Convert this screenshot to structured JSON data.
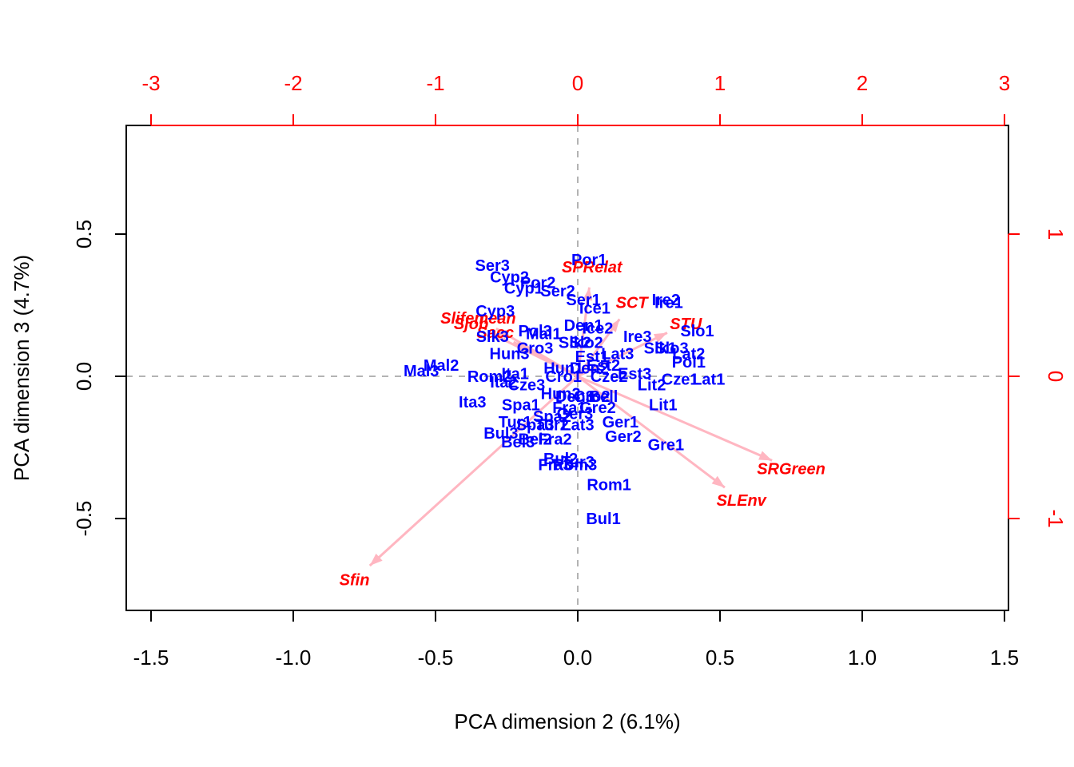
{
  "chart_data": {
    "type": "scatter",
    "subtype": "biplot",
    "title": "",
    "xlabel": "PCA dimension 2 (6.1%)",
    "ylabel": "PCA dimension 3 (4.7%)",
    "xlim": [
      -1.5,
      1.5
    ],
    "ylim": [
      -0.8,
      0.8
    ],
    "x_ticks": [
      -1.5,
      -1.0,
      -0.5,
      0.0,
      0.5,
      1.0,
      1.5
    ],
    "x_tick_labels": [
      "-1.5",
      "-1.0",
      "-0.5",
      "0.0",
      "0.5",
      "1.0",
      "1.5"
    ],
    "y_ticks": [
      -0.5,
      0.0,
      0.5
    ],
    "y_tick_labels": [
      "-0.5",
      "0.0",
      "0.5"
    ],
    "secondary_axis_color": "#ff0000",
    "x2_ticks": [
      -3,
      -2,
      -1,
      0,
      1,
      2,
      3
    ],
    "x2_tick_labels": [
      "-3",
      "-2",
      "-1",
      "0",
      "1",
      "2",
      "3"
    ],
    "y2_ticks": [
      -1,
      0,
      1
    ],
    "y2_tick_labels": [
      "-1",
      "0",
      "1"
    ],
    "zero_lines": true,
    "point_color": "#0000ff",
    "vector_label_color": "#ff0000",
    "arrow_color": "#ffb6c1",
    "observations": [
      {
        "label": "Por1",
        "x": 0.04,
        "y": 0.41
      },
      {
        "label": "Ser3",
        "x": -0.3,
        "y": 0.39
      },
      {
        "label": "Cyp2",
        "x": -0.24,
        "y": 0.35
      },
      {
        "label": "Por2",
        "x": -0.14,
        "y": 0.33
      },
      {
        "label": "Cyp1",
        "x": -0.19,
        "y": 0.31
      },
      {
        "label": "Ser2",
        "x": -0.07,
        "y": 0.3
      },
      {
        "label": "Ser1",
        "x": 0.02,
        "y": 0.27
      },
      {
        "label": "Ice1",
        "x": 0.06,
        "y": 0.24
      },
      {
        "label": "Cyp3",
        "x": -0.29,
        "y": 0.23
      },
      {
        "label": "Ire2",
        "x": 0.31,
        "y": 0.27
      },
      {
        "label": "Ire1",
        "x": 0.32,
        "y": 0.26
      },
      {
        "label": "Den1",
        "x": 0.02,
        "y": 0.18
      },
      {
        "label": "Ice2",
        "x": 0.07,
        "y": 0.17
      },
      {
        "label": "Slo1",
        "x": 0.42,
        "y": 0.16
      },
      {
        "label": "Slk3",
        "x": -0.3,
        "y": 0.14
      },
      {
        "label": "Pol3",
        "x": -0.15,
        "y": 0.16
      },
      {
        "label": "Mal1",
        "x": -0.12,
        "y": 0.15
      },
      {
        "label": "Ire3",
        "x": 0.21,
        "y": 0.14
      },
      {
        "label": "Slk2",
        "x": -0.01,
        "y": 0.12
      },
      {
        "label": "Slo2",
        "x": 0.03,
        "y": 0.12
      },
      {
        "label": "Slk1",
        "x": 0.29,
        "y": 0.1
      },
      {
        "label": "Slo3",
        "x": 0.33,
        "y": 0.1
      },
      {
        "label": "Lat2",
        "x": 0.39,
        "y": 0.08
      },
      {
        "label": "Cro3",
        "x": -0.15,
        "y": 0.1
      },
      {
        "label": "Hun3",
        "x": -0.24,
        "y": 0.08
      },
      {
        "label": "Lat3",
        "x": 0.14,
        "y": 0.08
      },
      {
        "label": "Est1",
        "x": 0.05,
        "y": 0.07
      },
      {
        "label": "Pol1",
        "x": 0.39,
        "y": 0.05
      },
      {
        "label": "Mal2",
        "x": -0.48,
        "y": 0.04
      },
      {
        "label": "Mal3",
        "x": -0.55,
        "y": 0.02
      },
      {
        "label": "Est2",
        "x": 0.09,
        "y": 0.04
      },
      {
        "label": "Den2",
        "x": 0.04,
        "y": 0.03
      },
      {
        "label": "Hun1",
        "x": -0.05,
        "y": 0.03
      },
      {
        "label": "Est3",
        "x": 0.2,
        "y": 0.01
      },
      {
        "label": "Rom2",
        "x": -0.31,
        "y": 0.0
      },
      {
        "label": "Ita1",
        "x": -0.22,
        "y": 0.01
      },
      {
        "label": "Cze1",
        "x": 0.36,
        "y": -0.01
      },
      {
        "label": "Lat1",
        "x": 0.46,
        "y": -0.01
      },
      {
        "label": "Cro1",
        "x": -0.05,
        "y": 0.0
      },
      {
        "label": "Cze2",
        "x": 0.11,
        "y": 0.0
      },
      {
        "label": "Lit2",
        "x": 0.26,
        "y": -0.03
      },
      {
        "label": "Ita2",
        "x": -0.26,
        "y": -0.02
      },
      {
        "label": "Cze3",
        "x": -0.18,
        "y": -0.03
      },
      {
        "label": "Hun2",
        "x": -0.06,
        "y": -0.06
      },
      {
        "label": "Den3",
        "x": -0.01,
        "y": -0.07
      },
      {
        "label": "Cro2",
        "x": 0.05,
        "y": -0.07
      },
      {
        "label": "Bell",
        "x": 0.09,
        "y": -0.07
      },
      {
        "label": "Lit1",
        "x": 0.3,
        "y": -0.1
      },
      {
        "label": "Ita3",
        "x": -0.37,
        "y": -0.09
      },
      {
        "label": "Spa1",
        "x": -0.2,
        "y": -0.1
      },
      {
        "label": "Fra1",
        "x": -0.03,
        "y": -0.11
      },
      {
        "label": "Gre2",
        "x": 0.07,
        "y": -0.11
      },
      {
        "label": "Spa2",
        "x": -0.09,
        "y": -0.14
      },
      {
        "label": "Ger3",
        "x": -0.01,
        "y": -0.13
      },
      {
        "label": "Tur1",
        "x": -0.22,
        "y": -0.16
      },
      {
        "label": "Spa3",
        "x": -0.15,
        "y": -0.17
      },
      {
        "label": "Tur2",
        "x": -0.09,
        "y": -0.17
      },
      {
        "label": "Lat3",
        "x": 0.0,
        "y": -0.17
      },
      {
        "label": "Ger1",
        "x": 0.15,
        "y": -0.16
      },
      {
        "label": "Bul3",
        "x": -0.27,
        "y": -0.2
      },
      {
        "label": "Bel2",
        "x": -0.15,
        "y": -0.22
      },
      {
        "label": "Fra2",
        "x": -0.08,
        "y": -0.22
      },
      {
        "label": "Ger2",
        "x": 0.16,
        "y": -0.21
      },
      {
        "label": "Bel3",
        "x": -0.21,
        "y": -0.23
      },
      {
        "label": "Gre1",
        "x": 0.31,
        "y": -0.24
      },
      {
        "label": "Bul2",
        "x": -0.06,
        "y": -0.29
      },
      {
        "label": "Tur3",
        "x": 0.0,
        "y": -0.3
      },
      {
        "label": "Fra3",
        "x": -0.08,
        "y": -0.31
      },
      {
        "label": "Rom3",
        "x": -0.01,
        "y": -0.31
      },
      {
        "label": "Rom1",
        "x": 0.11,
        "y": -0.38
      },
      {
        "label": "Bul1",
        "x": 0.09,
        "y": -0.5
      }
    ],
    "variables": [
      {
        "label": "SPRelat",
        "x": 0.1,
        "y": 0.77
      },
      {
        "label": "SCT",
        "x": 0.38,
        "y": 0.52
      },
      {
        "label": "STU",
        "x": 0.76,
        "y": 0.37
      },
      {
        "label": "Slifemean",
        "x": -0.7,
        "y": 0.41
      },
      {
        "label": "Sjob",
        "x": -0.75,
        "y": 0.37
      },
      {
        "label": "Sacc",
        "x": -0.58,
        "y": 0.31
      },
      {
        "label": "SRGreen",
        "x": 1.5,
        "y": -0.65
      },
      {
        "label": "SLEnv",
        "x": 1.15,
        "y": -0.87
      },
      {
        "label": "Sfin",
        "x": -1.57,
        "y": -1.43
      }
    ]
  }
}
